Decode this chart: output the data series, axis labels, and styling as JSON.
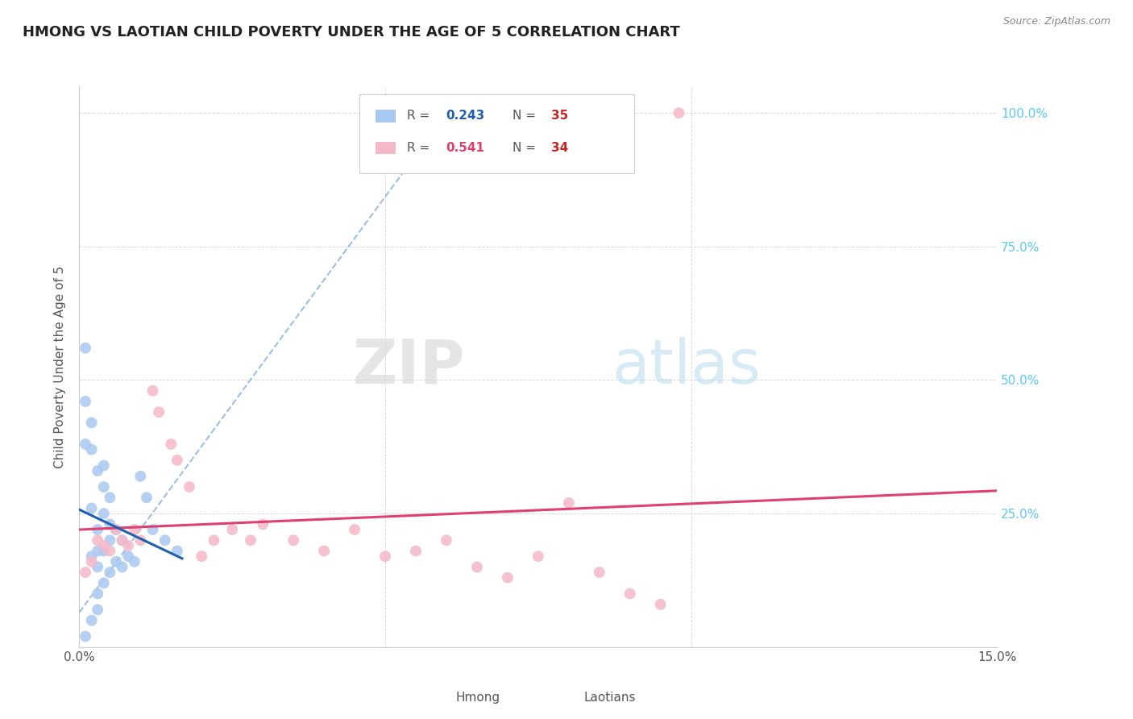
{
  "title": "HMONG VS LAOTIAN CHILD POVERTY UNDER THE AGE OF 5 CORRELATION CHART",
  "source": "Source: ZipAtlas.com",
  "ylabel": "Child Poverty Under the Age of 5",
  "background_color": "#ffffff",
  "watermark_zip": "ZIP",
  "watermark_atlas": "atlas",
  "legend_hmong_R": 0.243,
  "legend_hmong_N": 35,
  "legend_laotian_R": 0.541,
  "legend_laotian_N": 34,
  "xlim": [
    0.0,
    0.15
  ],
  "ylim": [
    0.0,
    1.05
  ],
  "hmong_x": [
    0.001,
    0.001,
    0.001,
    0.002,
    0.002,
    0.002,
    0.002,
    0.003,
    0.003,
    0.003,
    0.003,
    0.003,
    0.004,
    0.004,
    0.004,
    0.004,
    0.005,
    0.005,
    0.005,
    0.006,
    0.006,
    0.007,
    0.007,
    0.008,
    0.009,
    0.01,
    0.011,
    0.012,
    0.014,
    0.016,
    0.001,
    0.002,
    0.003,
    0.004,
    0.005
  ],
  "hmong_y": [
    0.56,
    0.46,
    0.02,
    0.42,
    0.37,
    0.17,
    0.05,
    0.33,
    0.22,
    0.18,
    0.1,
    0.07,
    0.3,
    0.25,
    0.18,
    0.12,
    0.28,
    0.2,
    0.14,
    0.22,
    0.16,
    0.2,
    0.15,
    0.17,
    0.16,
    0.32,
    0.28,
    0.22,
    0.2,
    0.18,
    0.38,
    0.26,
    0.15,
    0.34,
    0.23
  ],
  "laotian_x": [
    0.001,
    0.002,
    0.003,
    0.004,
    0.005,
    0.006,
    0.007,
    0.008,
    0.009,
    0.01,
    0.012,
    0.013,
    0.015,
    0.016,
    0.018,
    0.02,
    0.022,
    0.025,
    0.028,
    0.03,
    0.035,
    0.04,
    0.045,
    0.05,
    0.055,
    0.06,
    0.065,
    0.07,
    0.075,
    0.08,
    0.085,
    0.09,
    0.095,
    0.098
  ],
  "laotian_y": [
    0.14,
    0.16,
    0.2,
    0.19,
    0.18,
    0.22,
    0.2,
    0.19,
    0.22,
    0.2,
    0.48,
    0.44,
    0.38,
    0.35,
    0.3,
    0.17,
    0.2,
    0.22,
    0.2,
    0.23,
    0.2,
    0.18,
    0.22,
    0.17,
    0.18,
    0.2,
    0.15,
    0.13,
    0.17,
    0.27,
    0.14,
    0.1,
    0.08,
    1.0
  ],
  "hmong_color": "#a8c8f0",
  "laotian_color": "#f5b8c8",
  "hmong_line_color": "#2060b0",
  "laotian_line_color": "#e04070",
  "dashed_line_color": "#90b8e8",
  "grid_color": "#d0d0d0",
  "right_tick_color": "#5bc8f5",
  "title_color": "#222222",
  "legend_R_blue": "#2060b0",
  "legend_R_pink": "#e04070",
  "legend_N_color": "#cc2222"
}
